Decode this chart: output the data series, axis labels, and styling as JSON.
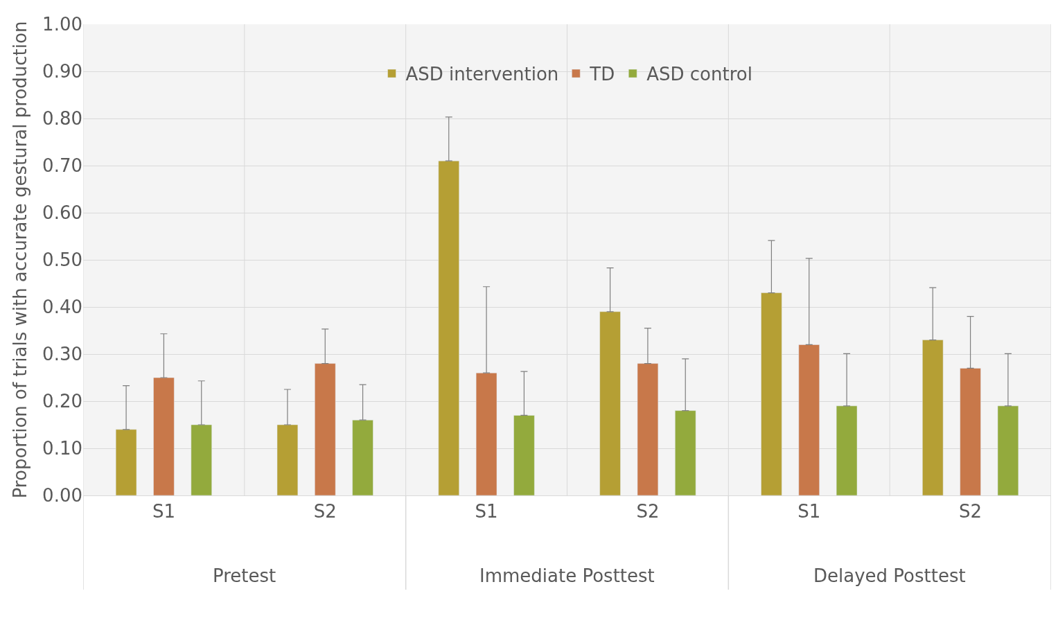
{
  "chart_data": {
    "type": "bar",
    "ylabel": "Proportion of trials with accurate gestural production",
    "categories": [
      "S1",
      "S2",
      "S1",
      "S2",
      "S1",
      "S2"
    ],
    "annotations": [
      "Pretest",
      "Immediate Posttest",
      "Delayed Posttest"
    ],
    "series": [
      {
        "name": "ASD intervention",
        "color": "#b59f34",
        "values": [
          0.14,
          0.15,
          0.71,
          0.39,
          0.43,
          0.33
        ],
        "errors": [
          [
            0.14,
            0.233
          ],
          [
            0.15,
            0.225
          ],
          [
            0.71,
            0.803
          ],
          [
            0.39,
            0.483
          ],
          [
            0.43,
            0.541
          ],
          [
            0.33,
            0.441
          ]
        ]
      },
      {
        "name": "TD",
        "color": "#c8784a",
        "values": [
          0.25,
          0.28,
          0.26,
          0.28,
          0.32,
          0.27
        ],
        "errors": [
          [
            0.25,
            0.343
          ],
          [
            0.28,
            0.353
          ],
          [
            0.26,
            0.443
          ],
          [
            0.28,
            0.355
          ],
          [
            0.32,
            0.503
          ],
          [
            0.27,
            0.38
          ]
        ]
      },
      {
        "name": "ASD control",
        "color": "#93aa3d",
        "values": [
          0.15,
          0.16,
          0.17,
          0.18,
          0.19,
          0.19
        ],
        "errors": [
          [
            0.15,
            0.243
          ],
          [
            0.16,
            0.235
          ],
          [
            0.17,
            0.263
          ],
          [
            0.18,
            0.29
          ],
          [
            0.19,
            0.301
          ],
          [
            0.19,
            0.301
          ]
        ]
      }
    ],
    "ylim": [
      0,
      1
    ],
    "yticks": [
      {
        "value": 0,
        "label": "0.00"
      },
      {
        "value": 0.1,
        "label": "0.10"
      },
      {
        "value": 0.2,
        "label": "0.20"
      },
      {
        "value": 0.3,
        "label": "0.30"
      },
      {
        "value": 0.4,
        "label": "0.40"
      },
      {
        "value": 0.5,
        "label": "0.50"
      },
      {
        "value": 0.6,
        "label": "0.60"
      },
      {
        "value": 0.7,
        "label": "0.70"
      },
      {
        "value": 0.8,
        "label": "0.80"
      },
      {
        "value": 0.9,
        "label": "0.90"
      },
      {
        "value": 1,
        "label": "1.00"
      }
    ],
    "grid": true,
    "legend": "top"
  }
}
